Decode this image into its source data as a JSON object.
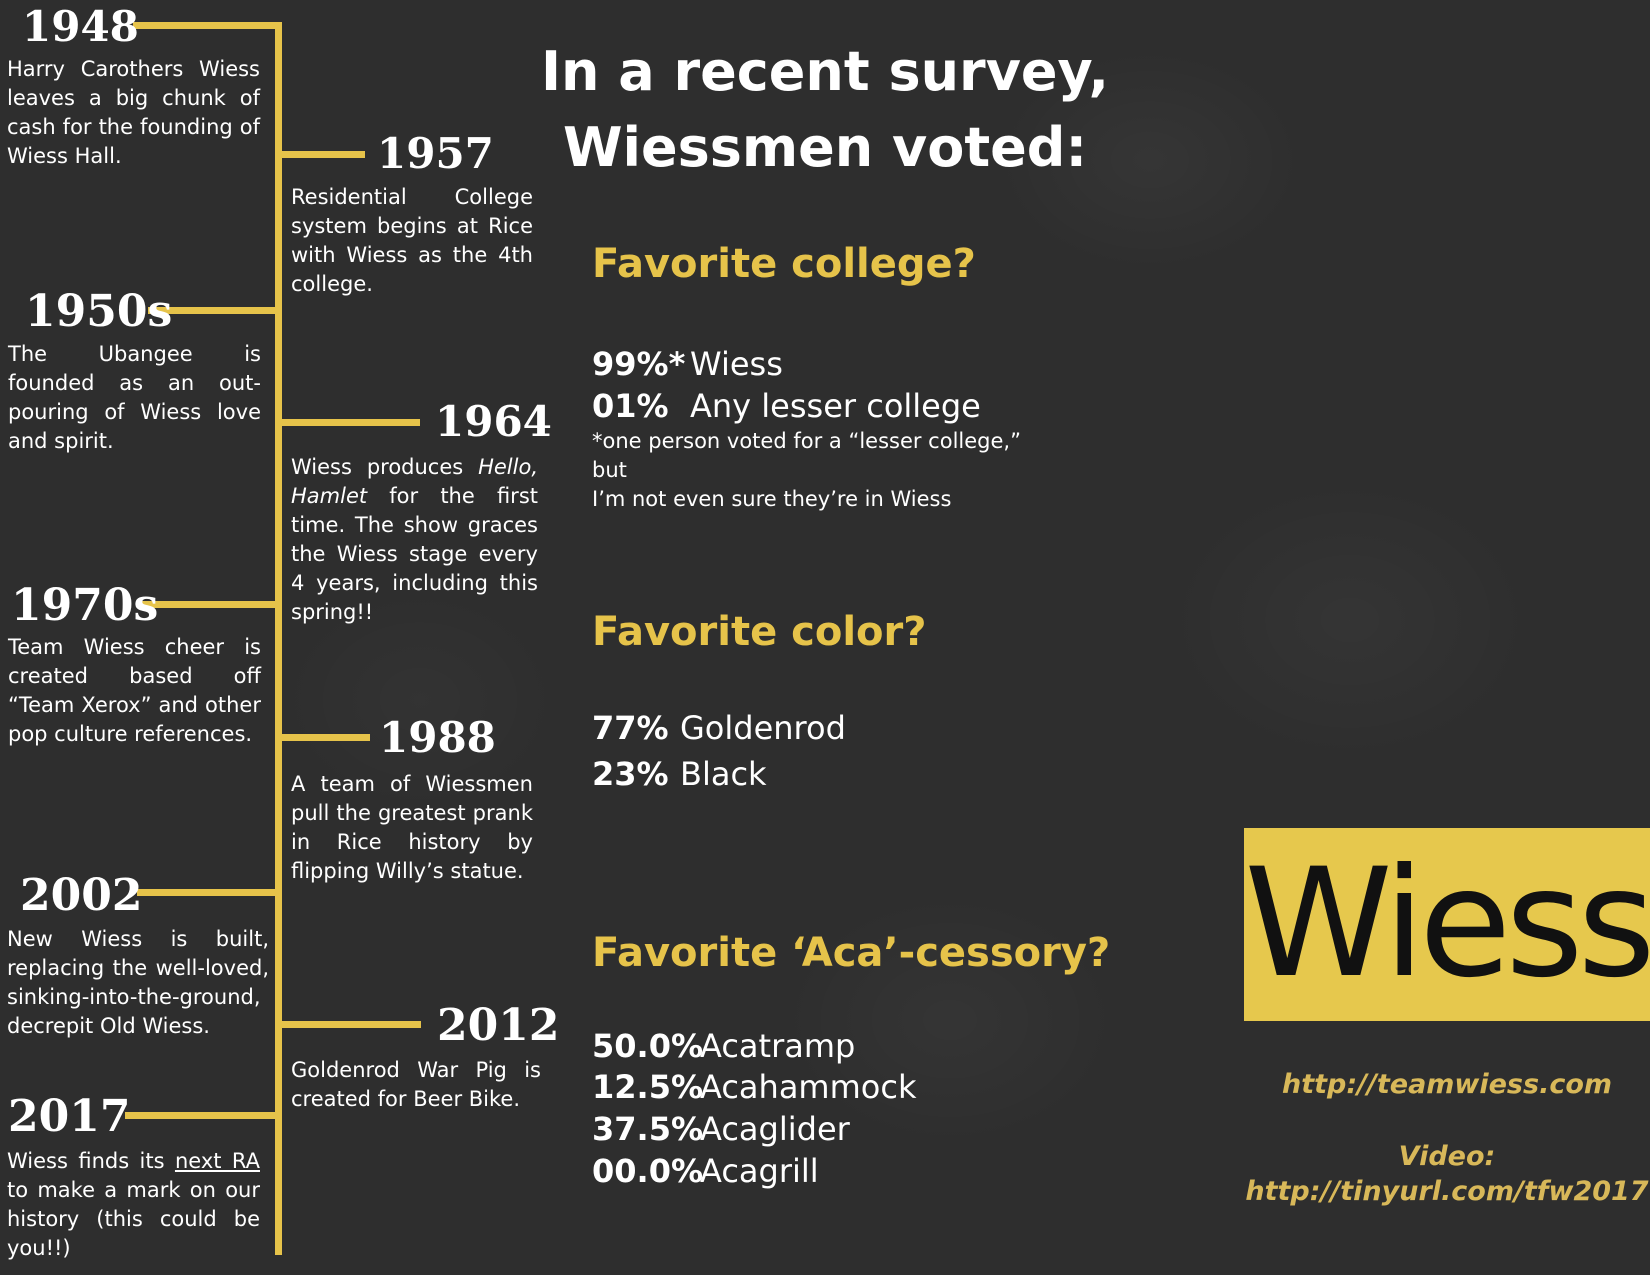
{
  "timeline": {
    "events": [
      {
        "year": "1948",
        "text": "Harry Carothers Wiess leaves a big chunk of cash for the founding of Wiess Hall."
      },
      {
        "year": "1957",
        "text": "Residential College system begins at Rice with Wiess as the 4th college."
      },
      {
        "year": "1950s",
        "text": "The Ubangee is founded as an out-pouring of Wiess love and spirit."
      },
      {
        "year": "1964",
        "text_before": "Wiess produces ",
        "text_italic": "Hello, Hamlet",
        "text_after": " for the first time. The show graces the Wiess stage every 4 years, including this spring!!"
      },
      {
        "year": "1970s",
        "text": "Team Wiess cheer is created based off “Team Xerox” and other pop culture references."
      },
      {
        "year": "1988",
        "text": "A team of Wiessmen pull the greatest prank in Rice history by flipping Willy’s statue."
      },
      {
        "year": "2002",
        "text": "New Wiess is built, replacing the well-loved, sinking-into-the-ground, decrepit Old Wiess."
      },
      {
        "year": "2012",
        "text": "Goldenrod War Pig is created for Beer Bike."
      },
      {
        "year": "2017",
        "text_before": "Wiess finds its ",
        "text_underline": "next RA",
        "text_after": " to make a mark on our history (this could be you!!)"
      }
    ]
  },
  "survey": {
    "title_line1": "In a recent survey,",
    "title_line2": "Wiessmen voted:",
    "questions": [
      {
        "question": "Favorite college?",
        "results": [
          {
            "pct": "99%*",
            "label": "Wiess"
          },
          {
            "pct": "01%",
            "label": "Any lesser college"
          }
        ],
        "footnote_line1": "*one person voted for a “lesser college,” but",
        "footnote_line2": "I’m not even sure they’re in Wiess"
      },
      {
        "question": "Favorite color?",
        "results": [
          {
            "pct": "77%",
            "label": "Goldenrod"
          },
          {
            "pct": "23%",
            "label": "Black"
          }
        ]
      },
      {
        "question": "Favorite ‘Aca’-cessory?",
        "results": [
          {
            "pct": "50.0%",
            "label": "Acatramp"
          },
          {
            "pct": "12.5%",
            "label": "Acahammock"
          },
          {
            "pct": "37.5%",
            "label": "Acaglider"
          },
          {
            "pct": "00.0%",
            "label": "Acagrill"
          }
        ]
      }
    ]
  },
  "logo": {
    "text": "Wiess"
  },
  "links": {
    "website": "http://teamwiess.com",
    "video_label": "Video:",
    "video_url": "http://tinyurl.com/tfw2017"
  },
  "colors": {
    "accent": "#e6c34a",
    "background": "#2e2e2e",
    "logo_bg": "#e6c84d"
  }
}
